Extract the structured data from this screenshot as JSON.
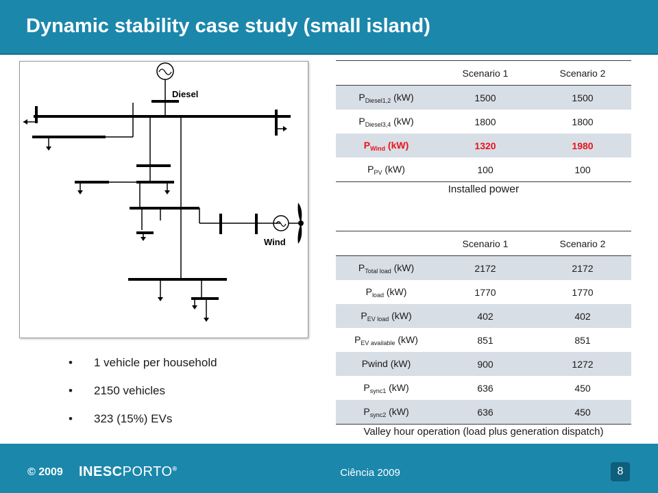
{
  "header": {
    "title": "Dynamic stability case study (small island)"
  },
  "diagram": {
    "diesel_label": "Diesel",
    "wind_label": "Wind"
  },
  "bullets": [
    "1 vehicle per household",
    "2150 vehicles",
    "323 (15%) EVs"
  ],
  "table1": {
    "headers": [
      "",
      "Scenario 1",
      "Scenario 2"
    ],
    "rows": [
      {
        "p": "P",
        "sub": "Diesel1,2",
        "unit": " (kW)",
        "s1": "1500",
        "s2": "1500"
      },
      {
        "p": "P",
        "sub": "Diesel3,4",
        "unit": " (kW)",
        "s1": "1800",
        "s2": "1800"
      },
      {
        "p": "P",
        "sub": "Wind",
        "unit": " (kW)",
        "s1": "1320",
        "s2": "1980"
      },
      {
        "p": "P",
        "sub": "PV",
        "unit": " (kW)",
        "s1": "100",
        "s2": "100"
      }
    ],
    "caption_a": "Installed ",
    "caption_b": "power"
  },
  "table2": {
    "headers": [
      "",
      "Scenario 1",
      "Scenario 2"
    ],
    "rows": [
      {
        "p": "P",
        "sub": "Total load",
        "unit": " (kW)",
        "s1": "2172",
        "s2": "2172"
      },
      {
        "p": "P",
        "sub": "load",
        "unit": " (kW)",
        "s1": "1770",
        "s2": "1770"
      },
      {
        "p": "P",
        "sub": "EV load",
        "unit": " (kW)",
        "s1": "402",
        "s2": "402"
      },
      {
        "p": "P",
        "sub": "EV available",
        "unit": " (kW)",
        "s1": "851",
        "s2": "851"
      },
      {
        "p": "Pwind",
        "sub": "",
        "unit": " (kW)",
        "s1": "900",
        "s2": "1272"
      },
      {
        "p": "P",
        "sub": "sync1",
        "unit": " (kW)",
        "s1": "636",
        "s2": "450"
      },
      {
        "p": "P",
        "sub": "sync2",
        "unit": " (kW)",
        "s1": "636",
        "s2": "450"
      }
    ],
    "caption": "Valley hour operation (load plus generation dispatch)"
  },
  "footer": {
    "copyright": "© 2009",
    "brand_a": "INESC",
    "brand_b": "PORTO",
    "brand_mark": "®",
    "center": "Ciência 2009",
    "page": "8"
  },
  "colors": {
    "accent": "#1b87ab",
    "highlight": "#e8141b",
    "row_shade": "#d8dee6"
  }
}
